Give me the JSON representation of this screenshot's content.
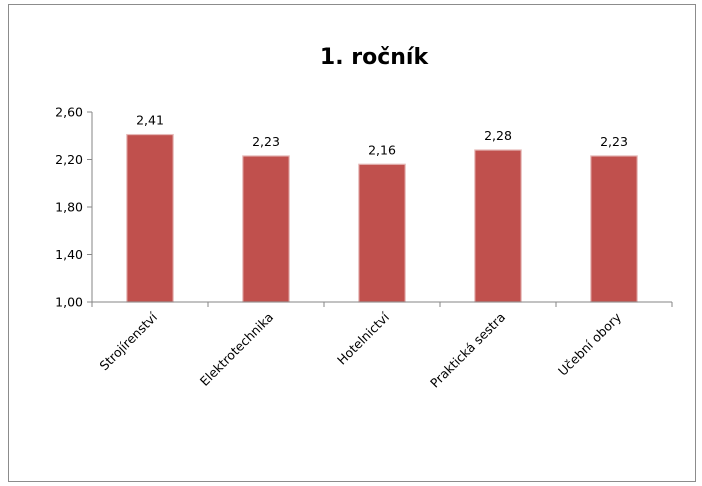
{
  "colors": {
    "bar": "#c0504d",
    "bar_edge": "#e6b9b8",
    "axis": "#868686",
    "frame_border": "#8c8c8c"
  },
  "chart_data": {
    "type": "bar",
    "title": "1. ročník",
    "xlabel": "",
    "ylabel": "",
    "categories": [
      "Strojírenství",
      "Elektrotechnika",
      "Hotelnictví",
      "Praktická sestra",
      "Učební obory"
    ],
    "values": [
      2.41,
      2.23,
      2.16,
      2.28,
      2.23
    ],
    "value_labels": [
      "2,41",
      "2,23",
      "2,16",
      "2,28",
      "2,23"
    ],
    "ylim": [
      1.0,
      2.6
    ],
    "yticks": [
      1.0,
      1.4,
      1.8,
      2.2,
      2.6
    ],
    "ytick_labels": [
      "1,00",
      "1,40",
      "1,80",
      "2,20",
      "2,60"
    ],
    "grid": false,
    "legend": "none"
  }
}
